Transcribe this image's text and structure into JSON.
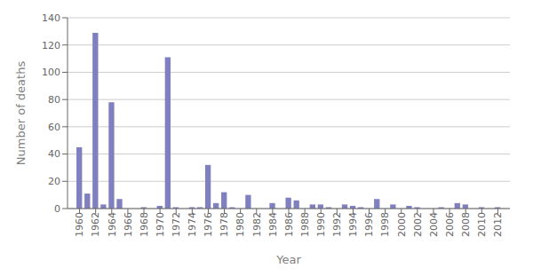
{
  "chart_data": {
    "type": "bar",
    "x": [
      1960,
      1961,
      1962,
      1963,
      1964,
      1965,
      1966,
      1967,
      1968,
      1969,
      1970,
      1971,
      1972,
      1973,
      1974,
      1975,
      1976,
      1977,
      1978,
      1979,
      1980,
      1981,
      1982,
      1983,
      1984,
      1985,
      1986,
      1987,
      1988,
      1989,
      1990,
      1991,
      1992,
      1993,
      1994,
      1995,
      1996,
      1997,
      1998,
      1999,
      2000,
      2001,
      2002,
      2003,
      2004,
      2005,
      2006,
      2007,
      2008,
      2009,
      2010,
      2011,
      2012
    ],
    "values": [
      45,
      11,
      129,
      3,
      78,
      7,
      0,
      0,
      1,
      0,
      2,
      111,
      1,
      0,
      1,
      1,
      32,
      4,
      12,
      1,
      0,
      10,
      0,
      0,
      4,
      0,
      8,
      6,
      0,
      3,
      3,
      1,
      0,
      3,
      2,
      1,
      0,
      7,
      0,
      3,
      0,
      2,
      1,
      0,
      0,
      1,
      0,
      4,
      3,
      0,
      1,
      0,
      1
    ],
    "color": "#8080c0",
    "xlabel": "Year",
    "ylabel": "Number of deaths",
    "xlim": [
      1958.5,
      2013.5
    ],
    "xticks": [
      1960,
      1962,
      1964,
      1966,
      1968,
      1970,
      1972,
      1974,
      1976,
      1978,
      1980,
      1982,
      1984,
      1986,
      1988,
      1990,
      1992,
      1994,
      1996,
      1998,
      2000,
      2002,
      2004,
      2006,
      2008,
      2010,
      2012
    ],
    "ylim": [
      0,
      140
    ],
    "yticks": [
      0,
      20,
      40,
      60,
      80,
      100,
      120,
      140
    ],
    "grid": true
  }
}
